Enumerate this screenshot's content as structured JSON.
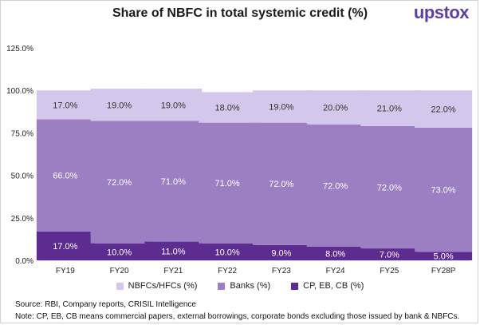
{
  "brand": "upstox",
  "chart_data": {
    "type": "bar",
    "stacked": true,
    "title": "Share of NBFC in total systemic credit (%)",
    "categories": [
      "FY19",
      "FY20",
      "FY21",
      "FY22",
      "FY23",
      "FY24",
      "FY25",
      "FY28P"
    ],
    "series": [
      {
        "name": "CP, EB, CB (%)",
        "color": "#5c2c91",
        "values": [
          17,
          10,
          11,
          10,
          9,
          8,
          7,
          5
        ]
      },
      {
        "name": "Banks (%)",
        "color": "#9b7fc2",
        "values": [
          66,
          72,
          71,
          71,
          72,
          72,
          72,
          73
        ]
      },
      {
        "name": "NBFCs/HFCs (%)",
        "color": "#d4c7ec",
        "values": [
          17,
          19,
          19,
          18,
          19,
          20,
          21,
          22
        ]
      }
    ],
    "data_labels": [
      [
        "17.0%",
        "10.0%",
        "11.0%",
        "10.0%",
        "9.0%",
        "8.0%",
        "7.0%",
        "5.0%"
      ],
      [
        "66.0%",
        "72.0%",
        "71.0%",
        "71.0%",
        "72.0%",
        "72.0%",
        "72.0%",
        "73.0%"
      ],
      [
        "17.0%",
        "19.0%",
        "19.0%",
        "18.0%",
        "19.0%",
        "20.0%",
        "21.0%",
        "22.0%"
      ]
    ],
    "ylim": [
      0,
      125
    ],
    "yticks": [
      0,
      25,
      50,
      75,
      100,
      125
    ],
    "ytick_labels": [
      "0.0%",
      "25.0%",
      "50.0%",
      "75.0%",
      "100.0%",
      "125.0%"
    ],
    "grid": false,
    "legend_order": [
      "NBFCs/HFCs (%)",
      "Banks (%)",
      "CP, EB, CB (%)"
    ],
    "legend_position": "bottom"
  },
  "footnotes": {
    "source": "Source: RBI, Company reports, CRISIL Intelligence",
    "note": "Note: CP, EB, CB means commercial papers, external borrowings, corporate bonds excluding those issued by bank & NBFCs."
  }
}
